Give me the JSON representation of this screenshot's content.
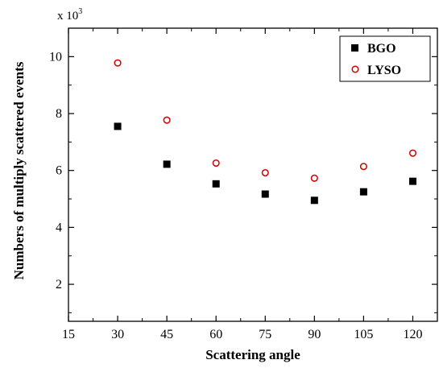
{
  "chart_data": {
    "type": "scatter",
    "xlabel": "Scattering angle",
    "ylabel": "Numbers of multiply scattered events",
    "y_multiplier": {
      "base": "x 10",
      "exponent": "3"
    },
    "xlim": [
      15,
      127.5
    ],
    "ylim": [
      0.7,
      11
    ],
    "xticks": [
      15,
      30,
      45,
      60,
      75,
      90,
      105,
      120
    ],
    "yticks": [
      2,
      4,
      6,
      8,
      10
    ],
    "grid": false,
    "legend_position": "top-right",
    "series": [
      {
        "name": "BGO",
        "marker": "filled-square",
        "color": "#000000",
        "x": [
          30,
          45,
          60,
          75,
          90,
          105,
          120
        ],
        "y": [
          7.55,
          6.22,
          5.53,
          5.17,
          4.95,
          5.25,
          5.62
        ]
      },
      {
        "name": "LYSO",
        "marker": "open-circle",
        "color": "#d40000",
        "x": [
          30,
          45,
          60,
          75,
          90,
          105,
          120
        ],
        "y": [
          9.78,
          7.77,
          6.26,
          5.92,
          5.73,
          6.14,
          6.61
        ]
      }
    ]
  }
}
